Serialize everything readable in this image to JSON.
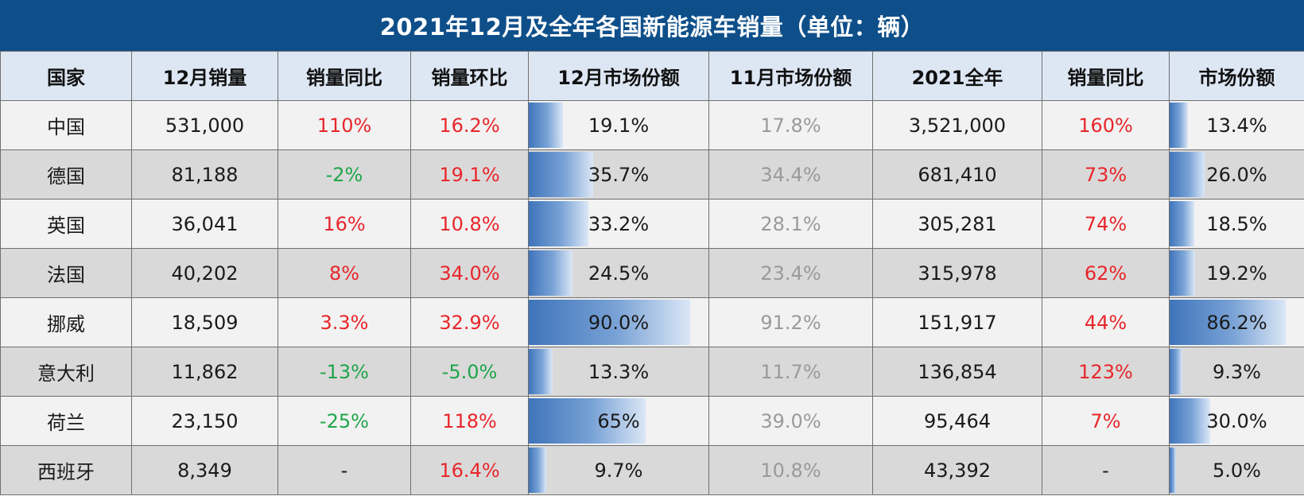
{
  "title": "2021年12月及全年各国新能源车销量（单位：辆）",
  "columns": [
    "国家",
    "12月销量",
    "销量同比",
    "销量环比",
    "12月市场份额",
    "11月市场份额",
    "2021全年",
    "销量同比",
    "市场份额"
  ],
  "colors": {
    "header_bg": "#0e4f8a",
    "column_header_bg": "#dde7f4",
    "positive": "#e8262b",
    "negative": "#1fa54a",
    "muted": "#9a9a9a",
    "bar": "#3f74bb"
  },
  "rows": [
    [
      "中国",
      "531,000",
      "110%",
      "16.2%",
      "19.1%",
      "17.8%",
      "3,521,000",
      "160%",
      "13.4%"
    ],
    [
      "德国",
      "81,188",
      "-2%",
      "19.1%",
      "35.7%",
      "34.4%",
      "681,410",
      "73%",
      "26.0%"
    ],
    [
      "英国",
      "36,041",
      "16%",
      "10.8%",
      "33.2%",
      "28.1%",
      "305,281",
      "74%",
      "18.5%"
    ],
    [
      "法国",
      "40,202",
      "8%",
      "34.0%",
      "24.5%",
      "23.4%",
      "315,978",
      "62%",
      "19.2%"
    ],
    [
      "挪威",
      "18,509",
      "3.3%",
      "32.9%",
      "90.0%",
      "91.2%",
      "151,917",
      "44%",
      "86.2%"
    ],
    [
      "意大利",
      "11,862",
      "-13%",
      "-5.0%",
      "13.3%",
      "11.7%",
      "136,854",
      "123%",
      "9.3%"
    ],
    [
      "荷兰",
      "23,150",
      "-25%",
      "118%",
      "65%",
      "39.0%",
      "95,464",
      "7%",
      "30.0%"
    ],
    [
      "西班牙",
      "8,349",
      "-",
      "16.4%",
      "9.7%",
      "10.8%",
      "43,392",
      "-",
      "5.0%"
    ]
  ],
  "chart_data": {
    "type": "table",
    "title": "2021年12月及全年各国新能源车销量（单位：辆）",
    "categories": [
      "中国",
      "德国",
      "英国",
      "法国",
      "挪威",
      "意大利",
      "荷兰",
      "西班牙"
    ],
    "series": [
      {
        "name": "12月销量",
        "values": [
          531000,
          81188,
          36041,
          40202,
          18509,
          11862,
          23150,
          8349
        ]
      },
      {
        "name": "销量同比",
        "values": [
          110,
          -2,
          16,
          8,
          3.3,
          -13,
          -25,
          null
        ]
      },
      {
        "name": "销量环比",
        "values": [
          16.2,
          19.1,
          10.8,
          34.0,
          32.9,
          -5.0,
          118,
          16.4
        ]
      },
      {
        "name": "12月市场份额",
        "values": [
          19.1,
          35.7,
          33.2,
          24.5,
          90.0,
          13.3,
          65,
          9.7
        ]
      },
      {
        "name": "11月市场份额",
        "values": [
          17.8,
          34.4,
          28.1,
          23.4,
          91.2,
          11.7,
          39.0,
          10.8
        ]
      },
      {
        "name": "2021全年",
        "values": [
          3521000,
          681410,
          305281,
          315978,
          151917,
          136854,
          95464,
          43392
        ]
      },
      {
        "name": "销量同比",
        "values": [
          160,
          73,
          74,
          62,
          44,
          123,
          7,
          null
        ]
      },
      {
        "name": "市场份额",
        "values": [
          13.4,
          26.0,
          18.5,
          19.2,
          86.2,
          9.3,
          30.0,
          5.0
        ]
      }
    ],
    "data_bars": {
      "12月市场份额": [
        19.1,
        35.7,
        33.2,
        24.5,
        90.0,
        13.3,
        65,
        9.7
      ],
      "市场份额": [
        13.4,
        26.0,
        18.5,
        19.2,
        86.2,
        9.3,
        30.0,
        5.0
      ]
    }
  }
}
